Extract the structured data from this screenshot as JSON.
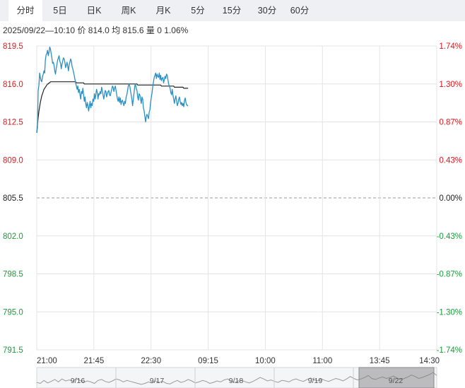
{
  "tabs": [
    {
      "label": "分时",
      "active": true
    },
    {
      "label": "5日",
      "active": false
    },
    {
      "label": "日K",
      "active": false
    },
    {
      "label": "周K",
      "active": false
    },
    {
      "label": "月K",
      "active": false
    },
    {
      "label": "5分",
      "active": false
    },
    {
      "label": "15分",
      "active": false
    },
    {
      "label": "30分",
      "active": false
    },
    {
      "label": "60分",
      "active": false
    }
  ],
  "info": {
    "datetime": "2025/09/22—10:10",
    "price_label": "价",
    "price": "814.0",
    "avg_label": "均",
    "avg": "815.6",
    "volume_label": "量",
    "volume": "0",
    "change_pct": "1.06%"
  },
  "colors": {
    "up": "#e8151b",
    "down": "#1a9d3a",
    "neutral": "#222222",
    "price_line": "#2b8fc4",
    "avg_line": "#222222",
    "grid": "#e4e4e4",
    "baseline": "#9a9a9a"
  },
  "chart_data": {
    "type": "line",
    "base_price": 805.5,
    "ylim": [
      791.5,
      819.5
    ],
    "y_ticks": [
      "819.5",
      "816.0",
      "812.5",
      "809.0",
      "805.5",
      "802.0",
      "798.5",
      "795.0",
      "791.5"
    ],
    "pct_ticks": [
      "1.74%",
      "1.30%",
      "0.87%",
      "0.43%",
      "0.00%",
      "-0.43%",
      "-0.87%",
      "-1.30%",
      "-1.74%"
    ],
    "x_ticks": [
      "21:00",
      "21:45",
      "22:30",
      "09:15",
      "10:00",
      "11:00",
      "13:45",
      "14:30"
    ],
    "x_total_minutes": 555,
    "series": [
      {
        "key": "price",
        "values": [
          811.5,
          812.0,
          815.4,
          815.9,
          817.0,
          816.6,
          816.3,
          816.2,
          816.7,
          816.9,
          817.2,
          817.0,
          818.2,
          818.7,
          818.8,
          819.1,
          818.6,
          818.9,
          819.4,
          819.2,
          818.8,
          818.4,
          817.9,
          818.0,
          817.7,
          817.2,
          816.9,
          817.4,
          817.8,
          818.2,
          818.4,
          818.6,
          818.1,
          817.9,
          817.4,
          817.8,
          818.1,
          818.4,
          818.3,
          818.0,
          817.5,
          817.7,
          818.0,
          817.6,
          817.2,
          817.8,
          818.0,
          818.3,
          818.1,
          817.6,
          817.4,
          817.1,
          816.8,
          816.4,
          816.1,
          815.8,
          815.5,
          815.8,
          815.2,
          815.5,
          815.0,
          814.6,
          815.3,
          815.1,
          815.6,
          815.0,
          814.4,
          814.8,
          814.2,
          813.8,
          814.3,
          814.0,
          813.5,
          813.9,
          814.4,
          813.8,
          814.2,
          814.0,
          814.6,
          814.4,
          815.1,
          814.6,
          815.0,
          815.5,
          815.2,
          814.6,
          815.1,
          815.0,
          815.3,
          815.1,
          815.7,
          815.4,
          815.0,
          814.6,
          815.0,
          815.4,
          815.3,
          814.8,
          815.1,
          815.3,
          815.4,
          815.0,
          814.9,
          815.2,
          815.5,
          815.8,
          815.7,
          815.3,
          815.6,
          815.8,
          815.4,
          815.0,
          814.6,
          814.4,
          814.8,
          814.3,
          814.7,
          814.1,
          814.4,
          814.5,
          814.2,
          814.0,
          814.4,
          814.2,
          814.8,
          815.0,
          815.4,
          815.8,
          816.0,
          815.8,
          815.4,
          815.0,
          814.6,
          814.0,
          814.6,
          815.2,
          815.8,
          816.0,
          815.6,
          815.4,
          814.8,
          814.5,
          815.1,
          815.0,
          814.6,
          814.2,
          814.8,
          814.6,
          813.8,
          813.5,
          813.0,
          812.5,
          813.0,
          813.2,
          813.0,
          812.8,
          813.4,
          813.6,
          814.3,
          814.8,
          815.2,
          815.8,
          816.2,
          816.6,
          816.8,
          817.0,
          816.5,
          816.9,
          816.7,
          816.6,
          817.0,
          816.4,
          816.8,
          816.3,
          816.5,
          816.6,
          816.1,
          816.4,
          816.7,
          816.5,
          816.9,
          816.8,
          816.4,
          816.0,
          815.8,
          815.6,
          815.2,
          815.0,
          815.5,
          815.0,
          814.6,
          814.2,
          814.6,
          814.9,
          814.5,
          814.0,
          814.2,
          814.6,
          814.8,
          814.4,
          814.1,
          814.3,
          814.0,
          814.2,
          813.9,
          814.5,
          814.7,
          814.3,
          814.1,
          814.0,
          814.0
        ]
      },
      {
        "key": "average",
        "values": [
          811.5,
          812.2,
          812.9,
          813.5,
          813.9,
          814.3,
          814.6,
          814.9,
          815.1,
          815.3,
          815.5,
          815.6,
          815.7,
          815.8,
          815.9,
          816.0,
          816.0,
          816.1,
          816.1,
          816.2,
          816.2,
          816.2,
          816.2,
          816.2,
          816.2,
          816.2,
          816.2,
          816.2,
          816.2,
          816.2,
          816.2,
          816.2,
          816.2,
          816.2,
          816.2,
          816.2,
          816.2,
          816.2,
          816.2,
          816.2,
          816.2,
          816.2,
          816.2,
          816.2,
          816.2,
          816.2,
          816.2,
          816.2,
          816.2,
          816.2,
          816.2,
          816.2,
          816.2,
          816.2,
          816.2,
          816.1,
          816.1,
          816.1,
          816.1,
          816.1,
          816.1,
          816.1,
          816.1,
          816.1,
          816.1,
          816.1,
          816.0,
          816.0,
          816.0,
          816.0,
          816.0,
          816.0,
          816.0,
          816.0,
          816.0,
          816.0,
          816.0,
          816.0,
          816.0,
          816.0,
          816.0,
          816.0,
          816.0,
          816.0,
          816.0,
          816.0,
          816.0,
          816.0,
          816.0,
          816.0,
          816.0,
          816.0,
          816.0,
          816.0,
          816.0,
          816.0,
          816.0,
          816.0,
          816.0,
          816.0,
          816.0,
          816.0,
          816.0,
          816.0,
          816.0,
          816.0,
          816.0,
          816.0,
          816.0,
          816.0,
          816.0,
          816.0,
          816.0,
          816.0,
          816.0,
          816.0,
          816.0,
          816.0,
          816.0,
          816.0,
          816.0,
          816.0,
          816.0,
          816.0,
          816.0,
          816.0,
          816.0,
          816.0,
          816.0,
          816.0,
          816.0,
          816.0,
          816.0,
          816.0,
          816.0,
          816.0,
          816.0,
          816.0,
          816.0,
          816.0,
          815.9,
          815.9,
          815.9,
          815.9,
          815.9,
          815.9,
          815.9,
          815.9,
          815.9,
          815.9,
          815.9,
          815.9,
          815.9,
          815.9,
          815.9,
          815.9,
          815.9,
          815.9,
          815.9,
          815.9,
          815.9,
          815.9,
          815.9,
          815.9,
          815.9,
          815.9,
          815.9,
          815.9,
          815.9,
          815.9,
          815.9,
          815.9,
          815.9,
          815.8,
          815.8,
          815.8,
          815.8,
          815.8,
          815.8,
          815.8,
          815.8,
          815.8,
          815.8,
          815.8,
          815.8,
          815.8,
          815.8,
          815.8,
          815.8,
          815.8,
          815.8,
          815.7,
          815.7,
          815.7,
          815.7,
          815.7,
          815.7,
          815.7,
          815.7,
          815.7,
          815.7,
          815.7,
          815.7,
          815.7,
          815.6,
          815.6,
          815.6,
          815.6,
          815.6,
          815.6,
          815.6
        ]
      }
    ],
    "navigator": {
      "labels": [
        "9/16",
        "9/17",
        "9/18",
        "9/19",
        "9/22"
      ],
      "values": [
        3.2,
        3.0,
        3.6,
        3.1,
        3.4,
        3.8,
        3.3,
        3.9,
        3.5,
        3.7,
        3.4,
        4.0,
        3.6,
        3.2,
        3.5,
        3.3,
        3.0,
        3.6,
        3.8,
        3.4,
        3.2,
        3.5,
        3.9,
        3.7,
        3.3,
        3.6,
        3.4,
        3.2,
        3.0,
        2.8,
        3.0,
        3.3,
        3.1,
        3.5,
        3.2,
        3.4,
        3.0,
        2.9,
        3.3,
        3.6,
        3.2,
        3.4,
        3.8,
        3.5,
        3.1,
        3.3,
        3.6,
        3.4,
        3.0,
        3.2,
        3.5,
        3.3,
        3.7,
        3.9,
        3.4,
        3.2,
        3.5,
        3.6,
        3.3,
        3.1,
        3.4,
        3.8,
        4.2,
        3.9,
        3.5,
        3.7,
        3.4,
        3.2,
        3.6,
        3.5,
        3.3,
        3.7,
        3.9,
        3.6,
        3.4,
        3.8,
        4.1,
        3.7,
        3.5,
        3.9,
        3.6,
        3.4,
        3.7,
        4.0,
        3.8,
        3.5,
        3.9,
        4.4,
        4.0,
        3.7,
        3.9,
        4.2,
        4.6,
        4.0,
        3.8,
        4.1,
        4.3,
        4.0,
        4.2,
        4.5,
        4.1,
        3.8,
        4.0,
        4.3,
        4.7,
        4.4,
        4.0,
        4.2,
        4.5,
        4.8,
        5.2,
        4.6
      ]
    }
  }
}
